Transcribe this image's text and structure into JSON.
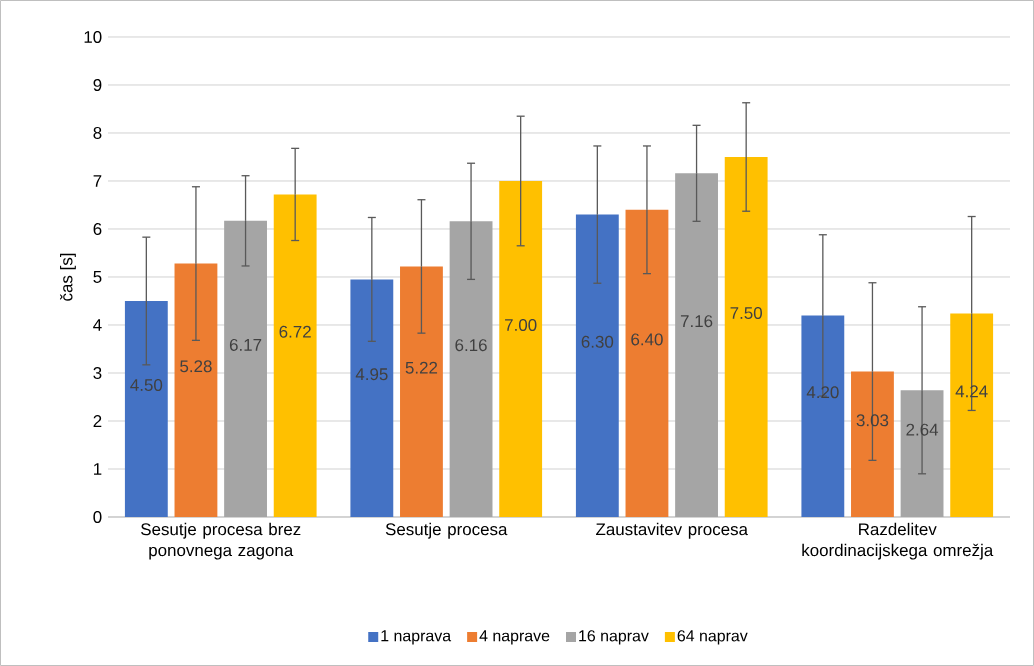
{
  "chart_data": {
    "type": "bar",
    "ylabel": "čas [s]",
    "categories": [
      "Sesutje procesa brez ponovnega zagona",
      "Sesutje procesa",
      "Zaustavitev procesa",
      "Razdelitev koordinacijskega omrežja"
    ],
    "series": [
      {
        "name": "1 naprava",
        "color": "#4472c4",
        "values": [
          4.5,
          4.95,
          6.3,
          4.2
        ],
        "errors": [
          1.33,
          1.29,
          1.43,
          1.68
        ],
        "value_labels": [
          "4.50",
          "4.95",
          "6.30",
          "4.20"
        ]
      },
      {
        "name": "4 naprave",
        "color": "#ed7d31",
        "values": [
          5.28,
          5.22,
          6.4,
          3.03
        ],
        "errors": [
          1.6,
          1.39,
          1.33,
          1.85
        ],
        "value_labels": [
          "5.28",
          "5.22",
          "6.40",
          "3.03"
        ]
      },
      {
        "name": "16 naprav",
        "color": "#a5a5a5",
        "values": [
          6.17,
          6.16,
          7.16,
          2.64
        ],
        "errors": [
          0.94,
          1.21,
          1.0,
          1.74
        ],
        "value_labels": [
          "6.17",
          "6.16",
          "7.16",
          "2.64"
        ]
      },
      {
        "name": "64 naprav",
        "color": "#ffc000",
        "values": [
          6.72,
          7.0,
          7.5,
          4.24
        ],
        "errors": [
          0.96,
          1.35,
          1.13,
          2.02
        ],
        "value_labels": [
          "6.72",
          "7.00",
          "7.50",
          "4.24"
        ]
      }
    ],
    "ylim": [
      0,
      10
    ],
    "yticks": [
      0,
      1,
      2,
      3,
      4,
      5,
      6,
      7,
      8,
      9,
      10
    ],
    "grid": "y",
    "legend": "bottom"
  }
}
